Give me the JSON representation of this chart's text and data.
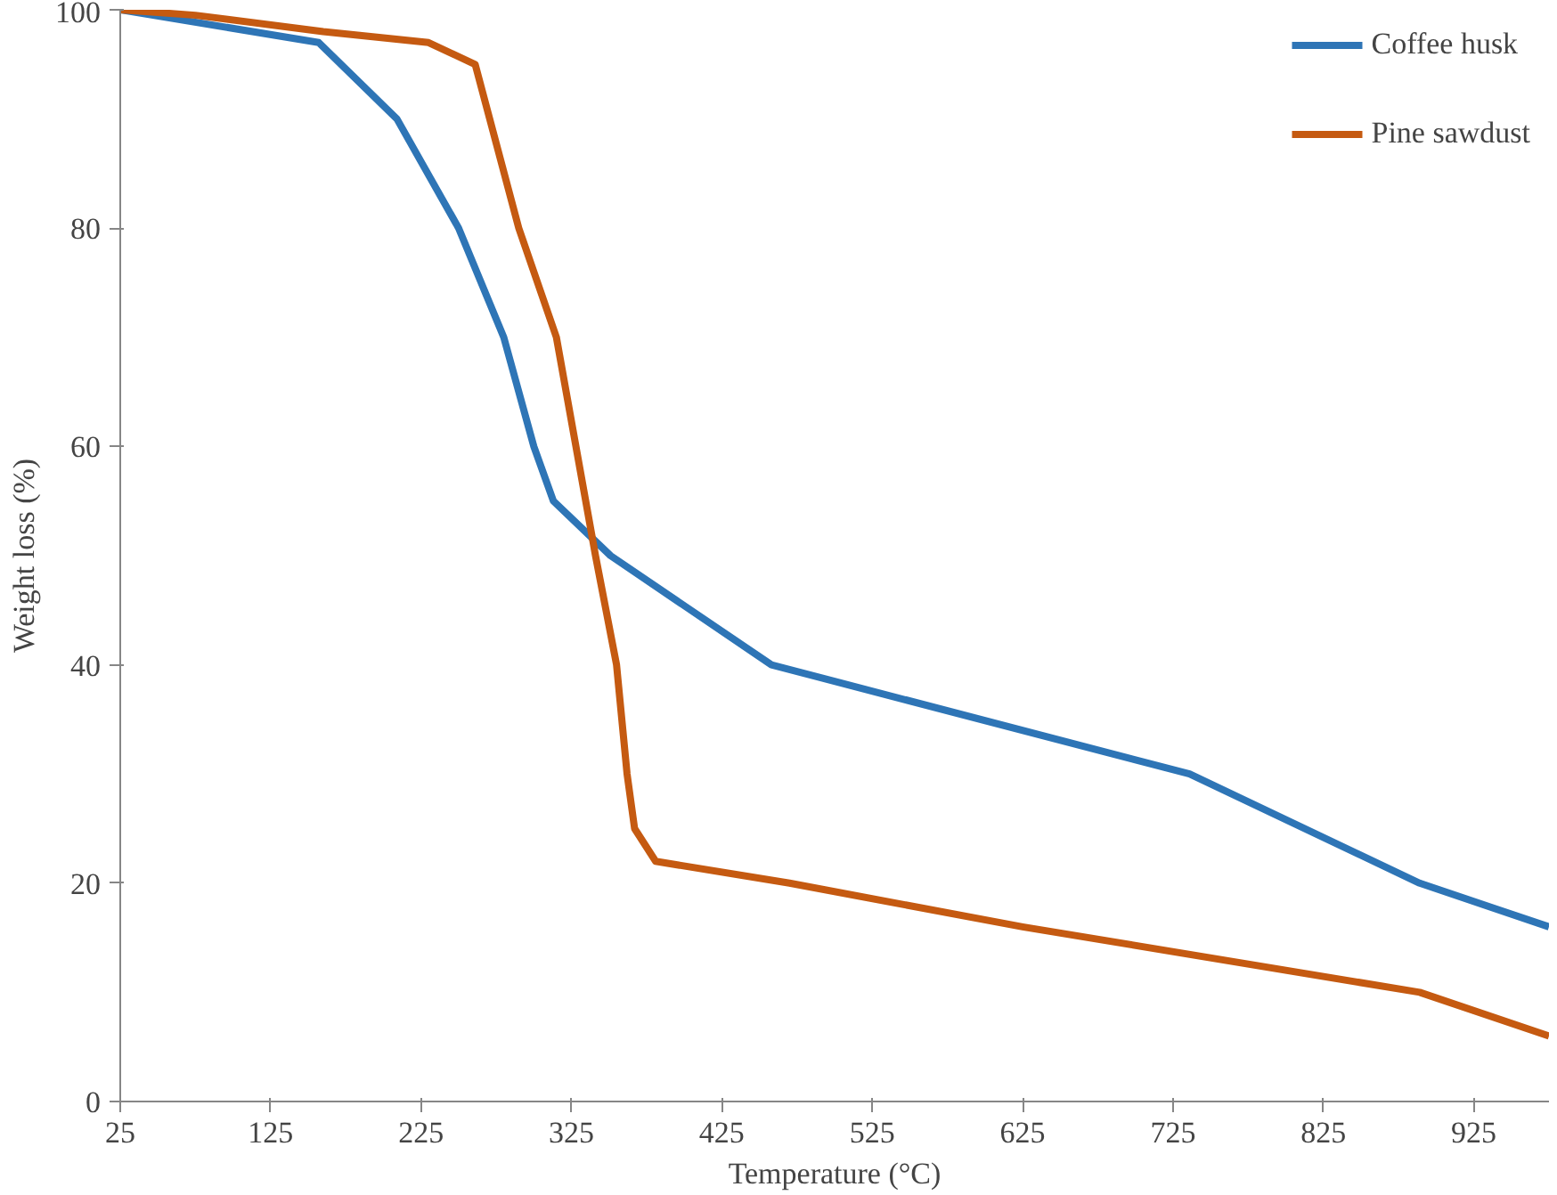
{
  "chart_data": {
    "type": "line",
    "xlabel": "Temperature (°C)",
    "ylabel": "Weight loss (%)",
    "xlim": [
      25,
      975
    ],
    "xticks": [
      25,
      125,
      225,
      325,
      425,
      525,
      625,
      725,
      825,
      925
    ],
    "ylim": [
      0,
      100
    ],
    "yticks": [
      0,
      20,
      40,
      60,
      80,
      100
    ],
    "grid": false,
    "legend": "top right",
    "marker": "none",
    "line_style": "solid",
    "series": [
      {
        "name": "Coffee husk",
        "color": "#2e75b6",
        "x": [
          25,
          157,
          209,
          250,
          280,
          300,
          313,
          351,
          458,
          736,
          889,
          975
        ],
        "values": [
          100,
          97,
          90,
          80,
          70,
          60,
          55,
          50,
          40,
          30,
          20,
          16
        ]
      },
      {
        "name": "Pine sawdust",
        "color": "#c55a11",
        "x": [
          25,
          75,
          160,
          230,
          261,
          290,
          315,
          341,
          355,
          362,
          367,
          381,
          470,
          625,
          889,
          975
        ],
        "values": [
          100,
          99.5,
          98,
          97,
          95,
          80,
          70,
          50,
          40,
          30,
          25,
          22,
          20,
          16,
          10,
          6
        ]
      }
    ]
  }
}
